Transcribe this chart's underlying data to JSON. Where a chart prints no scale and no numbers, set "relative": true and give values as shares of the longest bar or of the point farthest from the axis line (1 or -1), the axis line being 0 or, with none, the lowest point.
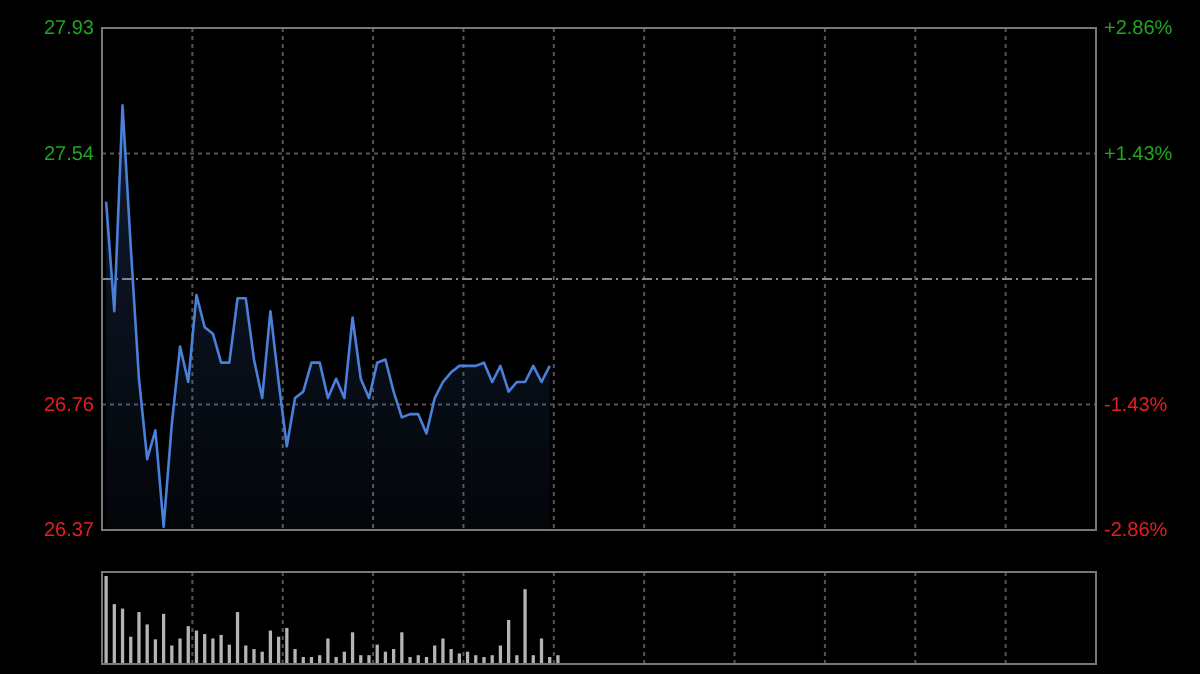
{
  "chart_data": [
    {
      "type": "line",
      "categories": [
        null,
        null,
        null,
        null,
        null,
        null,
        null,
        null,
        null,
        null,
        null,
        null,
        null,
        null,
        null,
        null,
        null,
        null,
        null,
        null,
        null,
        null,
        null,
        null,
        null,
        null,
        null,
        null,
        null,
        null,
        null,
        null,
        null,
        null,
        null,
        null,
        null,
        null,
        null,
        null,
        null,
        null,
        null,
        null,
        null,
        null,
        null,
        null,
        null,
        null,
        null,
        null,
        null,
        null,
        null,
        null,
        null,
        null,
        null,
        null,
        null,
        null,
        null,
        null,
        null,
        null,
        null,
        null,
        null,
        null,
        null,
        null,
        null,
        null,
        null,
        null,
        null,
        null,
        null,
        null,
        null,
        null,
        null,
        null,
        null,
        null,
        null,
        null,
        null,
        null,
        null,
        null,
        null,
        null,
        null,
        null,
        null,
        null,
        null,
        null,
        null,
        null,
        null,
        null,
        null,
        null,
        null,
        null,
        null,
        null,
        null,
        null,
        null,
        null,
        null,
        null,
        null,
        null,
        null,
        null,
        null
      ],
      "ylim": [
        26.37,
        27.93
      ],
      "yticks": [
        26.37,
        26.76,
        27.54,
        27.93
      ],
      "y2lim": [
        -2.86,
        2.86
      ],
      "y2ticks": [
        {
          "value": -2.86,
          "label": "-2.86%"
        },
        {
          "value": -1.43,
          "label": "-1.43%"
        },
        {
          "value": 1.43,
          "label": "+1.43%"
        },
        {
          "value": 2.86,
          "label": "+2.86%"
        }
      ],
      "grid": true,
      "ref_lines": [
        {
          "axis": "y",
          "value": 27.15
        }
      ],
      "series": [
        {
          "color": "#4a80d9",
          "values": [
            27.39,
            27.05,
            27.69,
            27.25,
            26.84,
            26.59,
            26.68,
            26.38,
            26.7,
            26.94,
            26.83,
            27.1,
            27.0,
            26.98,
            26.89,
            26.89,
            27.09,
            27.09,
            26.9,
            26.78,
            27.05,
            26.83,
            26.63,
            26.78,
            26.8,
            26.89,
            26.89,
            26.78,
            26.84,
            26.78,
            27.03,
            26.84,
            26.78,
            26.89,
            26.9,
            26.8,
            26.72,
            26.73,
            26.73,
            26.67,
            26.78,
            26.83,
            26.86,
            26.88,
            26.88,
            26.88,
            26.89,
            26.83,
            26.88,
            26.8,
            26.83,
            26.83,
            26.88,
            26.83,
            26.88,
            null,
            null,
            null,
            null,
            null,
            null,
            null,
            null,
            null,
            null,
            null,
            null,
            null,
            null,
            null,
            null,
            null,
            null,
            null,
            null,
            null,
            null,
            null,
            null,
            null,
            null,
            null,
            null,
            null,
            null,
            null,
            null,
            null,
            null,
            null,
            null,
            null,
            null,
            null,
            null,
            null,
            null,
            null,
            null,
            null,
            null,
            null,
            null,
            null,
            null,
            null,
            null,
            null,
            null,
            null,
            null,
            null,
            null,
            null,
            null,
            null,
            null,
            null,
            null,
            null,
            null
          ]
        }
      ]
    },
    {
      "type": "bar",
      "relative": true,
      "grid": "x",
      "tick_labels": false,
      "categories": [
        null,
        null,
        null,
        null,
        null,
        null,
        null,
        null,
        null,
        null,
        null,
        null,
        null,
        null,
        null,
        null,
        null,
        null,
        null,
        null,
        null,
        null,
        null,
        null,
        null,
        null,
        null,
        null,
        null,
        null,
        null,
        null,
        null,
        null,
        null,
        null,
        null,
        null,
        null,
        null,
        null,
        null,
        null,
        null,
        null,
        null,
        null,
        null,
        null,
        null,
        null,
        null,
        null,
        null,
        null,
        null,
        null,
        null,
        null,
        null,
        null,
        null,
        null,
        null,
        null,
        null,
        null,
        null,
        null,
        null,
        null,
        null,
        null,
        null,
        null,
        null,
        null,
        null,
        null,
        null,
        null,
        null,
        null,
        null,
        null,
        null,
        null,
        null,
        null,
        null,
        null,
        null,
        null,
        null,
        null,
        null,
        null,
        null,
        null,
        null,
        null,
        null,
        null,
        null,
        null,
        null,
        null,
        null,
        null,
        null,
        null,
        null,
        null,
        null,
        null,
        null,
        null,
        null,
        null,
        null,
        null
      ],
      "series": [
        {
          "color": "#b4b4b4",
          "values": [
            1.0,
            0.68,
            0.63,
            0.31,
            0.59,
            0.45,
            0.28,
            0.57,
            0.21,
            0.29,
            0.43,
            0.38,
            0.34,
            0.29,
            0.33,
            0.22,
            0.59,
            0.21,
            0.17,
            0.14,
            0.38,
            0.31,
            0.41,
            0.17,
            0.08,
            0.08,
            0.1,
            0.29,
            0.08,
            0.14,
            0.36,
            0.1,
            0.1,
            0.22,
            0.14,
            0.17,
            0.36,
            0.08,
            0.1,
            0.08,
            0.21,
            0.29,
            0.17,
            0.12,
            0.14,
            0.1,
            0.08,
            0.1,
            0.21,
            0.5,
            0.1,
            0.85,
            0.1,
            0.29,
            0.08,
            0.1,
            null,
            null,
            null,
            null,
            null,
            null,
            null,
            null,
            null,
            null,
            null,
            null,
            null,
            null,
            null,
            null,
            null,
            null,
            null,
            null,
            null,
            null,
            null,
            null,
            null,
            null,
            null,
            null,
            null,
            null,
            null,
            null,
            null,
            null,
            null,
            null,
            null,
            null,
            null,
            null,
            null,
            null,
            null,
            null,
            null,
            null,
            null,
            null,
            null,
            null,
            null,
            null,
            null,
            null,
            null,
            null,
            null,
            null,
            null,
            null,
            null,
            null,
            null,
            null,
            null
          ]
        }
      ]
    }
  ]
}
